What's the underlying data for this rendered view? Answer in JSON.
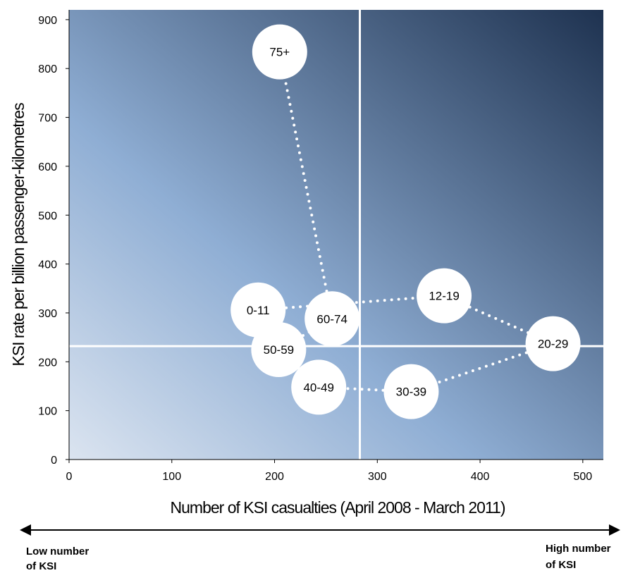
{
  "chart_data": {
    "type": "scatter",
    "xlabel": "Number of KSI casualties (April 2008 - March 2011)",
    "ylabel": "KSI rate per billion passenger-kilometres",
    "xlim": [
      0,
      520
    ],
    "ylim": [
      0,
      920
    ],
    "x_ticks": [
      0,
      100,
      200,
      300,
      400,
      500
    ],
    "y_ticks": [
      0,
      100,
      200,
      300,
      400,
      500,
      600,
      700,
      800,
      900
    ],
    "grid": false,
    "reference_lines": {
      "x": 283,
      "y": 232
    },
    "path_order": [
      "0-11",
      "12-19",
      "20-29",
      "30-39",
      "40-49",
      "50-59",
      "60-74",
      "75+"
    ],
    "points": [
      {
        "label": "0-11",
        "x": 184,
        "y": 306
      },
      {
        "label": "12-19",
        "x": 365,
        "y": 335
      },
      {
        "label": "20-29",
        "x": 471,
        "y": 237
      },
      {
        "label": "30-39",
        "x": 333,
        "y": 139
      },
      {
        "label": "40-49",
        "x": 243,
        "y": 148
      },
      {
        "label": "50-59",
        "x": 204,
        "y": 225
      },
      {
        "label": "60-74",
        "x": 256,
        "y": 288
      },
      {
        "label": "75+",
        "x": 205,
        "y": 834
      }
    ],
    "colors": {
      "gradient_light": "#dbe4f0",
      "gradient_mid": "#8faed4",
      "gradient_dark": "#1e3250",
      "marker_fill": "#ffffff",
      "connector": "#ffffff"
    }
  },
  "footer": {
    "left_label_line1": "Low number",
    "left_label_line2": "of KSI",
    "right_label_line1": "High number",
    "right_label_line2": "of KSI"
  }
}
